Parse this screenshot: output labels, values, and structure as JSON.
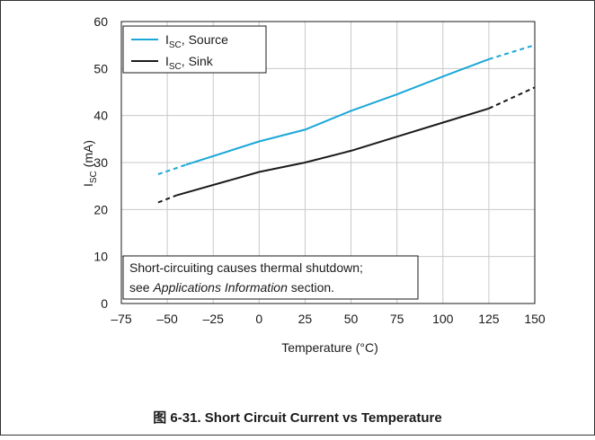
{
  "figure": {
    "caption": "图 6-31. Short Circuit Current vs Temperature"
  },
  "chart_data": {
    "type": "line",
    "title": "",
    "xlabel": "Temperature (°C)",
    "ylabel": {
      "main": "I",
      "sub": "SC",
      "tail": " (mA)"
    },
    "xlim": [
      -75,
      150
    ],
    "ylim": [
      0,
      60
    ],
    "xticks": [
      -75,
      -50,
      -25,
      0,
      25,
      50,
      75,
      100,
      125,
      150
    ],
    "xtick_labels": [
      "–75",
      "–50",
      "–25",
      "0",
      "25",
      "50",
      "75",
      "100",
      "125",
      "150"
    ],
    "yticks": [
      0,
      10,
      20,
      30,
      40,
      50,
      60
    ],
    "ytick_labels": [
      "0",
      "10",
      "20",
      "30",
      "40",
      "50",
      "60"
    ],
    "grid": true,
    "legend_position": "top-left",
    "series": [
      {
        "name": {
          "main": "I",
          "sub": "SC",
          "tail": ", Source"
        },
        "color": "#1ba7d8",
        "dashed": [
          [
            -55,
            27.5
          ],
          [
            -40,
            29.5
          ]
        ],
        "solid": [
          [
            -40,
            29.5
          ],
          [
            0,
            34.5
          ],
          [
            25,
            37
          ],
          [
            50,
            41
          ],
          [
            75,
            44.5
          ],
          [
            100,
            48.3
          ],
          [
            125,
            52
          ]
        ],
        "dashed_end": [
          [
            125,
            52
          ],
          [
            150,
            55
          ]
        ]
      },
      {
        "name": {
          "main": "I",
          "sub": "SC",
          "tail": ", Sink"
        },
        "color": "#1a1a1a",
        "dashed": [
          [
            -55,
            21.5
          ],
          [
            -45,
            23
          ]
        ],
        "solid": [
          [
            -45,
            23
          ],
          [
            0,
            28
          ],
          [
            25,
            30
          ],
          [
            50,
            32.5
          ],
          [
            75,
            35.5
          ],
          [
            100,
            38.5
          ],
          [
            125,
            41.5
          ]
        ],
        "dashed_end": [
          [
            125,
            41.5
          ],
          [
            150,
            46
          ]
        ]
      }
    ],
    "annotation": {
      "line1": "Short-circuiting causes thermal shutdown;",
      "line2_pre": "see ",
      "line2_italic": "Applications Information",
      "line2_post": " section."
    }
  }
}
